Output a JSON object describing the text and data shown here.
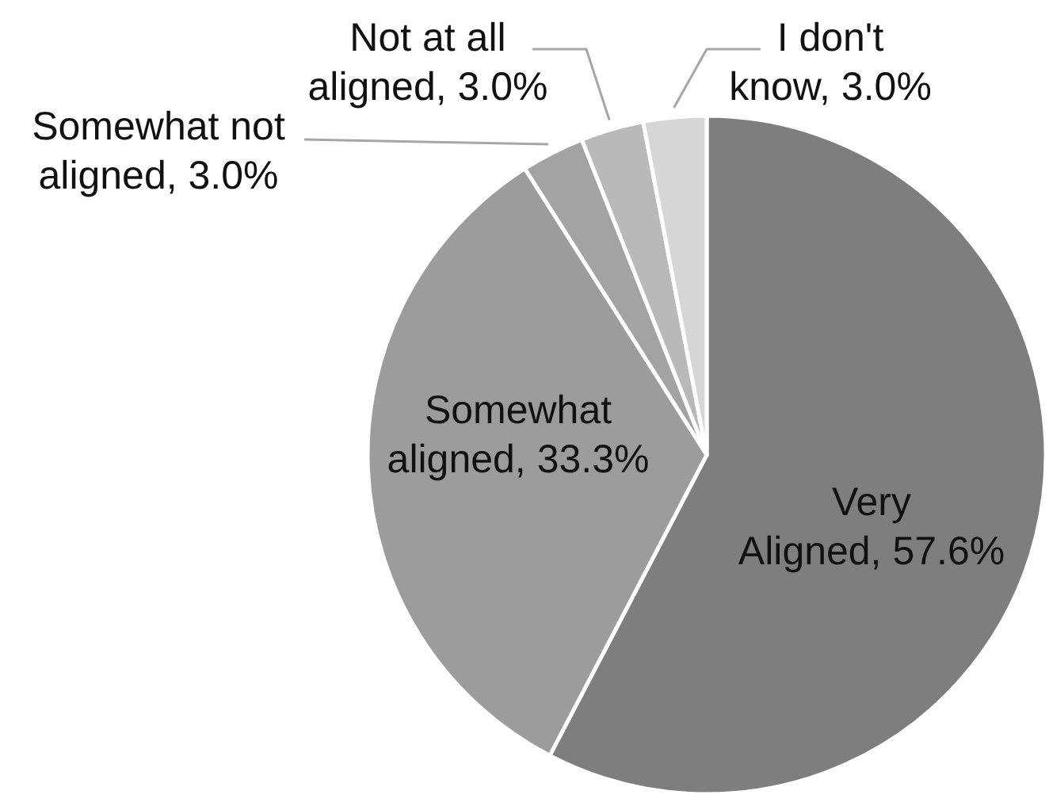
{
  "chart_data": {
    "type": "pie",
    "categories": [
      "Very Aligned",
      "Somewhat aligned",
      "Somewhat not aligned",
      "Not at all aligned",
      "I don't know"
    ],
    "values": [
      57.6,
      33.3,
      3.0,
      3.0,
      3.0
    ],
    "colors": [
      "#7e7e7e",
      "#9c9c9c",
      "#a3a3a3",
      "#b9b9b9",
      "#d6d6d6"
    ],
    "value_labels": [
      "57.6%",
      "33.3%",
      "3.0%",
      "3.0%",
      "3.0%"
    ]
  }
}
